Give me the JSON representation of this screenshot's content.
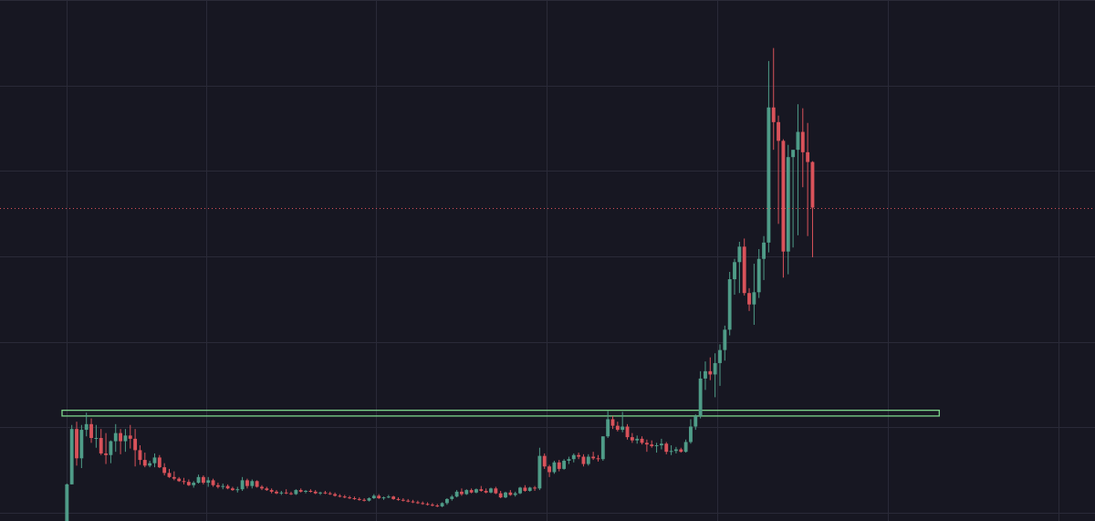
{
  "colors": {
    "background": "#171722",
    "grid": "#2a2a38",
    "up": "#4f9c88",
    "down": "#d9525a",
    "price_line": "#d9525a",
    "zone": "#7dd68c"
  },
  "chart_data": {
    "type": "candlestick",
    "grid": true,
    "x_axis_visible": false,
    "y_axis_visible": false,
    "y_range": [
      40,
      104
    ],
    "x_range": [
      -1,
      181
    ],
    "current_price": 78.5,
    "zone": {
      "start_index": -1,
      "end_index": 179,
      "low": 52.9,
      "high": 53.6
    },
    "grid_x_indices": [
      0,
      28.5,
      63.5,
      98.5,
      133.5,
      168.5,
      203.5
    ],
    "grid_y_values": [
      41,
      51.5,
      62,
      72.5,
      83,
      93.5,
      104
    ],
    "candles": [
      {
        "o": 40,
        "h": 44.6,
        "l": 40,
        "c": 44.5
      },
      {
        "o": 44.5,
        "h": 51.8,
        "l": 44.5,
        "c": 51.3
      },
      {
        "o": 51.3,
        "h": 52.2,
        "l": 46.8,
        "c": 47.7
      },
      {
        "o": 47.7,
        "h": 51.8,
        "l": 46.5,
        "c": 51.2
      },
      {
        "o": 51.2,
        "h": 53.3,
        "l": 50.4,
        "c": 51.9
      },
      {
        "o": 51.9,
        "h": 52.6,
        "l": 49.6,
        "c": 50.2
      },
      {
        "o": 50.2,
        "h": 51.8,
        "l": 49.0,
        "c": 50.2
      },
      {
        "o": 50.2,
        "h": 51.3,
        "l": 48.1,
        "c": 48.3
      },
      {
        "o": 48.3,
        "h": 50.8,
        "l": 47.0,
        "c": 48.1
      },
      {
        "o": 48.1,
        "h": 49.9,
        "l": 47.1,
        "c": 49.8
      },
      {
        "o": 49.8,
        "h": 51.9,
        "l": 48.5,
        "c": 50.8
      },
      {
        "o": 50.8,
        "h": 51.3,
        "l": 48.2,
        "c": 49.8
      },
      {
        "o": 49.8,
        "h": 51.3,
        "l": 48.5,
        "c": 50.5
      },
      {
        "o": 50.5,
        "h": 51.8,
        "l": 48.9,
        "c": 50.1
      },
      {
        "o": 50.1,
        "h": 51.3,
        "l": 46.7,
        "c": 48.7
      },
      {
        "o": 48.7,
        "h": 49.3,
        "l": 46.9,
        "c": 47.5
      },
      {
        "o": 47.5,
        "h": 48.4,
        "l": 46.6,
        "c": 46.8
      },
      {
        "o": 46.8,
        "h": 47.4,
        "l": 46.6,
        "c": 47.1
      },
      {
        "o": 47.1,
        "h": 48.3,
        "l": 46.6,
        "c": 47.8
      },
      {
        "o": 47.8,
        "h": 48.1,
        "l": 46.5,
        "c": 46.6
      },
      {
        "o": 46.6,
        "h": 47.1,
        "l": 45.6,
        "c": 45.9
      },
      {
        "o": 45.9,
        "h": 46.4,
        "l": 45.3,
        "c": 45.4
      },
      {
        "o": 45.4,
        "h": 46.1,
        "l": 45.0,
        "c": 45.2
      },
      {
        "o": 45.2,
        "h": 45.4,
        "l": 44.8,
        "c": 44.9
      },
      {
        "o": 44.9,
        "h": 45.3,
        "l": 44.5,
        "c": 44.8
      },
      {
        "o": 44.8,
        "h": 45.1,
        "l": 44.3,
        "c": 44.4
      },
      {
        "o": 44.4,
        "h": 44.9,
        "l": 44.1,
        "c": 44.7
      },
      {
        "o": 44.7,
        "h": 45.7,
        "l": 44.6,
        "c": 45.4
      },
      {
        "o": 45.4,
        "h": 45.6,
        "l": 44.5,
        "c": 44.7
      },
      {
        "o": 44.7,
        "h": 45.4,
        "l": 44.2,
        "c": 45.0
      },
      {
        "o": 45.0,
        "h": 45.2,
        "l": 44.2,
        "c": 44.4
      },
      {
        "o": 44.4,
        "h": 44.7,
        "l": 44.0,
        "c": 44.2
      },
      {
        "o": 44.2,
        "h": 44.6,
        "l": 43.9,
        "c": 44.3
      },
      {
        "o": 44.3,
        "h": 44.5,
        "l": 43.9,
        "c": 44.0
      },
      {
        "o": 44.0,
        "h": 44.2,
        "l": 43.7,
        "c": 43.8
      },
      {
        "o": 43.8,
        "h": 44.2,
        "l": 43.5,
        "c": 43.9
      },
      {
        "o": 43.9,
        "h": 45.4,
        "l": 43.7,
        "c": 45.0
      },
      {
        "o": 45.0,
        "h": 45.2,
        "l": 44.0,
        "c": 44.3
      },
      {
        "o": 44.3,
        "h": 45.1,
        "l": 44.0,
        "c": 44.9
      },
      {
        "o": 44.9,
        "h": 45.0,
        "l": 44.1,
        "c": 44.2
      },
      {
        "o": 44.2,
        "h": 44.4,
        "l": 43.8,
        "c": 44.0
      },
      {
        "o": 44.0,
        "h": 44.2,
        "l": 43.7,
        "c": 43.8
      },
      {
        "o": 43.8,
        "h": 44.0,
        "l": 43.4,
        "c": 43.6
      },
      {
        "o": 43.6,
        "h": 43.8,
        "l": 43.3,
        "c": 43.4
      },
      {
        "o": 43.4,
        "h": 43.7,
        "l": 43.2,
        "c": 43.5
      },
      {
        "o": 43.5,
        "h": 43.9,
        "l": 43.3,
        "c": 43.4
      },
      {
        "o": 43.4,
        "h": 43.6,
        "l": 43.2,
        "c": 43.3
      },
      {
        "o": 43.3,
        "h": 43.9,
        "l": 43.2,
        "c": 43.8
      },
      {
        "o": 43.8,
        "h": 44.0,
        "l": 43.5,
        "c": 43.6
      },
      {
        "o": 43.6,
        "h": 43.8,
        "l": 43.4,
        "c": 43.7
      },
      {
        "o": 43.7,
        "h": 43.9,
        "l": 43.5,
        "c": 43.6
      },
      {
        "o": 43.6,
        "h": 43.8,
        "l": 43.3,
        "c": 43.4
      },
      {
        "o": 43.4,
        "h": 43.6,
        "l": 43.2,
        "c": 43.5
      },
      {
        "o": 43.5,
        "h": 43.7,
        "l": 43.3,
        "c": 43.4
      },
      {
        "o": 43.4,
        "h": 43.6,
        "l": 43.2,
        "c": 43.3
      },
      {
        "o": 43.3,
        "h": 43.5,
        "l": 43.0,
        "c": 43.1
      },
      {
        "o": 43.1,
        "h": 43.3,
        "l": 42.9,
        "c": 43.0
      },
      {
        "o": 43.0,
        "h": 43.2,
        "l": 42.8,
        "c": 42.9
      },
      {
        "o": 42.9,
        "h": 43.1,
        "l": 42.7,
        "c": 42.8
      },
      {
        "o": 42.8,
        "h": 43.0,
        "l": 42.6,
        "c": 42.7
      },
      {
        "o": 42.7,
        "h": 42.9,
        "l": 42.5,
        "c": 42.6
      },
      {
        "o": 42.6,
        "h": 42.8,
        "l": 42.4,
        "c": 42.5
      },
      {
        "o": 42.5,
        "h": 42.9,
        "l": 42.4,
        "c": 42.8
      },
      {
        "o": 42.8,
        "h": 43.3,
        "l": 42.7,
        "c": 43.1
      },
      {
        "o": 43.1,
        "h": 43.3,
        "l": 42.7,
        "c": 42.8
      },
      {
        "o": 42.8,
        "h": 43.0,
        "l": 42.6,
        "c": 42.9
      },
      {
        "o": 42.9,
        "h": 43.2,
        "l": 42.8,
        "c": 43.0
      },
      {
        "o": 43.0,
        "h": 43.1,
        "l": 42.6,
        "c": 42.7
      },
      {
        "o": 42.7,
        "h": 42.9,
        "l": 42.5,
        "c": 42.6
      },
      {
        "o": 42.6,
        "h": 42.8,
        "l": 42.4,
        "c": 42.5
      },
      {
        "o": 42.5,
        "h": 42.7,
        "l": 42.3,
        "c": 42.4
      },
      {
        "o": 42.4,
        "h": 42.6,
        "l": 42.2,
        "c": 42.3
      },
      {
        "o": 42.3,
        "h": 42.5,
        "l": 42.1,
        "c": 42.2
      },
      {
        "o": 42.2,
        "h": 42.4,
        "l": 42.0,
        "c": 42.1
      },
      {
        "o": 42.1,
        "h": 42.3,
        "l": 41.9,
        "c": 42.0
      },
      {
        "o": 42.0,
        "h": 42.2,
        "l": 41.8,
        "c": 41.9
      },
      {
        "o": 41.9,
        "h": 42.1,
        "l": 41.7,
        "c": 41.8
      },
      {
        "o": 41.8,
        "h": 42.3,
        "l": 41.7,
        "c": 42.2
      },
      {
        "o": 42.2,
        "h": 42.8,
        "l": 42.0,
        "c": 42.7
      },
      {
        "o": 42.7,
        "h": 43.2,
        "l": 42.5,
        "c": 43.0
      },
      {
        "o": 43.0,
        "h": 43.8,
        "l": 42.9,
        "c": 43.6
      },
      {
        "o": 43.6,
        "h": 44.0,
        "l": 43.1,
        "c": 43.3
      },
      {
        "o": 43.3,
        "h": 43.9,
        "l": 43.2,
        "c": 43.8
      },
      {
        "o": 43.8,
        "h": 44.0,
        "l": 43.4,
        "c": 43.5
      },
      {
        "o": 43.5,
        "h": 44.0,
        "l": 43.4,
        "c": 43.9
      },
      {
        "o": 43.9,
        "h": 44.3,
        "l": 43.6,
        "c": 43.7
      },
      {
        "o": 43.7,
        "h": 44.0,
        "l": 43.4,
        "c": 43.5
      },
      {
        "o": 43.5,
        "h": 44.1,
        "l": 43.4,
        "c": 44.0
      },
      {
        "o": 44.0,
        "h": 44.2,
        "l": 43.3,
        "c": 43.4
      },
      {
        "o": 43.4,
        "h": 43.7,
        "l": 42.8,
        "c": 42.9
      },
      {
        "o": 42.9,
        "h": 43.6,
        "l": 42.8,
        "c": 43.5
      },
      {
        "o": 43.5,
        "h": 43.8,
        "l": 43.1,
        "c": 43.2
      },
      {
        "o": 43.2,
        "h": 43.6,
        "l": 43.0,
        "c": 43.4
      },
      {
        "o": 43.4,
        "h": 44.2,
        "l": 43.3,
        "c": 44.1
      },
      {
        "o": 44.1,
        "h": 44.4,
        "l": 43.6,
        "c": 43.7
      },
      {
        "o": 43.7,
        "h": 44.2,
        "l": 43.6,
        "c": 44.1
      },
      {
        "o": 44.1,
        "h": 44.3,
        "l": 43.7,
        "c": 44.0
      },
      {
        "o": 44.0,
        "h": 49.0,
        "l": 43.8,
        "c": 48.0
      },
      {
        "o": 48.0,
        "h": 48.3,
        "l": 46.4,
        "c": 46.7
      },
      {
        "o": 46.7,
        "h": 46.9,
        "l": 45.4,
        "c": 46.0
      },
      {
        "o": 46.0,
        "h": 47.4,
        "l": 45.8,
        "c": 47.2
      },
      {
        "o": 47.2,
        "h": 47.5,
        "l": 46.1,
        "c": 46.4
      },
      {
        "o": 46.4,
        "h": 47.6,
        "l": 46.3,
        "c": 47.4
      },
      {
        "o": 47.4,
        "h": 47.9,
        "l": 47.0,
        "c": 47.6
      },
      {
        "o": 47.6,
        "h": 48.3,
        "l": 47.2,
        "c": 48.1
      },
      {
        "o": 48.1,
        "h": 48.4,
        "l": 47.6,
        "c": 47.9
      },
      {
        "o": 47.9,
        "h": 48.2,
        "l": 46.7,
        "c": 47.0
      },
      {
        "o": 47.0,
        "h": 48.2,
        "l": 46.8,
        "c": 47.9
      },
      {
        "o": 47.9,
        "h": 48.5,
        "l": 47.5,
        "c": 47.7
      },
      {
        "o": 47.7,
        "h": 48.1,
        "l": 47.3,
        "c": 47.6
      },
      {
        "o": 47.6,
        "h": 50.4,
        "l": 47.4,
        "c": 50.4
      },
      {
        "o": 50.4,
        "h": 53.5,
        "l": 50.2,
        "c": 52.5
      },
      {
        "o": 52.5,
        "h": 52.9,
        "l": 51.3,
        "c": 51.7
      },
      {
        "o": 51.7,
        "h": 52.2,
        "l": 51.0,
        "c": 51.2
      },
      {
        "o": 51.2,
        "h": 53.4,
        "l": 50.9,
        "c": 51.6
      },
      {
        "o": 51.6,
        "h": 51.9,
        "l": 50.0,
        "c": 50.3
      },
      {
        "o": 50.3,
        "h": 50.8,
        "l": 49.6,
        "c": 49.9
      },
      {
        "o": 49.9,
        "h": 50.5,
        "l": 49.5,
        "c": 50.1
      },
      {
        "o": 50.1,
        "h": 50.4,
        "l": 49.4,
        "c": 49.6
      },
      {
        "o": 49.6,
        "h": 50.0,
        "l": 48.5,
        "c": 49.4
      },
      {
        "o": 49.4,
        "h": 49.9,
        "l": 49.0,
        "c": 49.2
      },
      {
        "o": 49.2,
        "h": 49.6,
        "l": 48.4,
        "c": 49.3
      },
      {
        "o": 49.3,
        "h": 50.1,
        "l": 48.8,
        "c": 49.5
      },
      {
        "o": 49.5,
        "h": 49.7,
        "l": 48.2,
        "c": 48.5
      },
      {
        "o": 48.5,
        "h": 49.3,
        "l": 48.1,
        "c": 48.6
      },
      {
        "o": 48.6,
        "h": 49.1,
        "l": 48.3,
        "c": 48.8
      },
      {
        "o": 48.8,
        "h": 49.0,
        "l": 48.4,
        "c": 48.5
      },
      {
        "o": 48.5,
        "h": 50.0,
        "l": 48.4,
        "c": 49.7
      },
      {
        "o": 49.7,
        "h": 52.5,
        "l": 49.5,
        "c": 51.6
      },
      {
        "o": 51.6,
        "h": 53.1,
        "l": 51.2,
        "c": 52.9
      },
      {
        "o": 52.9,
        "h": 58.4,
        "l": 52.6,
        "c": 57.5
      },
      {
        "o": 57.5,
        "h": 59.6,
        "l": 56.1,
        "c": 58.4
      },
      {
        "o": 58.4,
        "h": 60.1,
        "l": 57.3,
        "c": 58.0
      },
      {
        "o": 58.0,
        "h": 60.6,
        "l": 55.2,
        "c": 59.4
      },
      {
        "o": 59.4,
        "h": 61.7,
        "l": 56.6,
        "c": 61.0
      },
      {
        "o": 61.0,
        "h": 64.0,
        "l": 59.7,
        "c": 63.5
      },
      {
        "o": 63.5,
        "h": 70.6,
        "l": 62.8,
        "c": 69.7
      },
      {
        "o": 69.7,
        "h": 72.2,
        "l": 67.8,
        "c": 71.8
      },
      {
        "o": 71.8,
        "h": 74.3,
        "l": 68.0,
        "c": 73.7
      },
      {
        "o": 73.7,
        "h": 74.7,
        "l": 67.7,
        "c": 68.0
      },
      {
        "o": 68.0,
        "h": 68.6,
        "l": 65.8,
        "c": 66.6
      },
      {
        "o": 66.6,
        "h": 71.6,
        "l": 64.1,
        "c": 68.1
      },
      {
        "o": 68.1,
        "h": 73.4,
        "l": 67.4,
        "c": 72.2
      },
      {
        "o": 72.2,
        "h": 75.0,
        "l": 69.6,
        "c": 74.2
      },
      {
        "o": 74.2,
        "h": 96.5,
        "l": 73.0,
        "c": 90.8
      },
      {
        "o": 90.8,
        "h": 98.1,
        "l": 85.6,
        "c": 89.0
      },
      {
        "o": 89.0,
        "h": 89.8,
        "l": 76.5,
        "c": 86.7
      },
      {
        "o": 86.7,
        "h": 86.9,
        "l": 69.9,
        "c": 73.1
      },
      {
        "o": 73.1,
        "h": 86.2,
        "l": 70.3,
        "c": 84.7
      },
      {
        "o": 84.7,
        "h": 85.1,
        "l": 73.6,
        "c": 85.6
      },
      {
        "o": 85.6,
        "h": 91.2,
        "l": 75.1,
        "c": 87.8
      },
      {
        "o": 87.8,
        "h": 90.7,
        "l": 81.0,
        "c": 85.3
      },
      {
        "o": 85.3,
        "h": 88.9,
        "l": 75.0,
        "c": 84.1
      },
      {
        "o": 84.1,
        "h": 84.2,
        "l": 72.4,
        "c": 78.5
      }
    ]
  }
}
